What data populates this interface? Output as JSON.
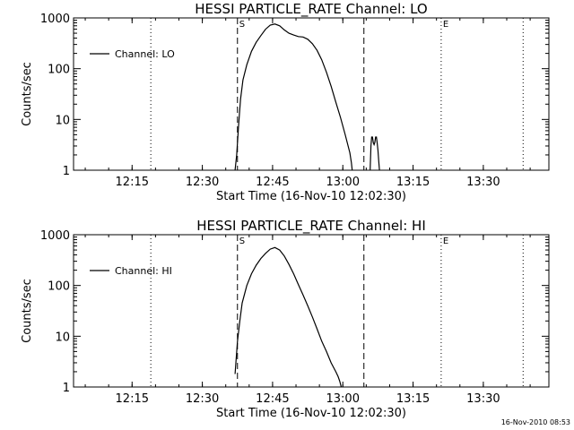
{
  "chart_data": [
    {
      "type": "line",
      "title": "HESSI PARTICLE_RATE Channel: LO",
      "xlabel": "Start Time (16-Nov-10 12:02:30)",
      "ylabel": "Counts/sec",
      "y_scale": "log",
      "ylim": [
        1,
        1000
      ],
      "xlim": [
        "12:02:30",
        "13:44:00"
      ],
      "x_ticks": [
        "12:15",
        "12:30",
        "12:45",
        "13:00",
        "13:15",
        "13:30"
      ],
      "y_ticks": [
        "1",
        "10",
        "100",
        "1000"
      ],
      "grid": false,
      "legend": {
        "position": "top-left",
        "entries": [
          "Channel: LO"
        ]
      },
      "markers": [
        {
          "label": "S",
          "time": "12:37:30",
          "style": "dashed"
        },
        {
          "label": "",
          "time": "13:04:30",
          "style": "dashed"
        },
        {
          "label": "",
          "time": "12:19:00",
          "style": "dotted"
        },
        {
          "label": "",
          "time": "13:21:00",
          "style": "dotted"
        },
        {
          "label": "E",
          "time": "13:21:00",
          "style": "none"
        },
        {
          "label": "",
          "time": "13:38:30",
          "style": "dotted"
        }
      ],
      "series": [
        {
          "name": "Channel: LO",
          "segments": [
            {
              "x": [
                "12:37:00",
                "12:37:20",
                "12:37:45",
                "12:38:10",
                "12:38:40",
                "12:39:30",
                "12:40:30",
                "12:41:30",
                "12:42:30",
                "12:43:30",
                "12:44:30",
                "12:45:30",
                "12:46:30",
                "12:47:30",
                "12:48:30",
                "12:49:30",
                "12:50:30",
                "12:51:30",
                "12:52:30",
                "12:53:30",
                "12:54:30",
                "12:55:30",
                "12:56:30",
                "12:57:30",
                "12:58:30",
                "12:59:30",
                "13:00:30",
                "13:01:30",
                "13:01:50",
                "13:02:00"
              ],
              "y": [
                1,
                2,
                8,
                25,
                60,
                120,
                220,
                330,
                450,
                600,
                720,
                760,
                700,
                580,
                500,
                460,
                430,
                420,
                380,
                310,
                230,
                150,
                85,
                45,
                22,
                11,
                5,
                2.2,
                1.4,
                1
              ]
            },
            {
              "x": [
                "13:05:50",
                "13:06:00",
                "13:06:10",
                "13:06:20",
                "13:06:30",
                "13:06:40",
                "13:06:50",
                "13:07:00",
                "13:07:10",
                "13:07:20",
                "13:07:30",
                "13:07:40",
                "13:07:50"
              ],
              "y": [
                1,
                3,
                4.5,
                4.5,
                3.5,
                3.2,
                3.5,
                4.5,
                4.5,
                3.5,
                2.5,
                1.5,
                1
              ]
            }
          ]
        }
      ]
    },
    {
      "type": "line",
      "title": "HESSI PARTICLE_RATE Channel: HI",
      "xlabel": "Start Time (16-Nov-10 12:02:30)",
      "ylabel": "Counts/sec",
      "y_scale": "log",
      "ylim": [
        1,
        1000
      ],
      "xlim": [
        "12:02:30",
        "13:44:00"
      ],
      "x_ticks": [
        "12:15",
        "12:30",
        "12:45",
        "13:00",
        "13:15",
        "13:30"
      ],
      "y_ticks": [
        "1",
        "10",
        "100",
        "1000"
      ],
      "grid": false,
      "legend": {
        "position": "top-left",
        "entries": [
          "Channel: HI"
        ]
      },
      "markers": [
        {
          "label": "S",
          "time": "12:37:30",
          "style": "dashed"
        },
        {
          "label": "",
          "time": "13:04:30",
          "style": "dashed"
        },
        {
          "label": "",
          "time": "12:19:00",
          "style": "dotted"
        },
        {
          "label": "",
          "time": "13:21:00",
          "style": "dotted"
        },
        {
          "label": "E",
          "time": "13:21:00",
          "style": "none"
        },
        {
          "label": "",
          "time": "13:38:30",
          "style": "dotted"
        }
      ],
      "series": [
        {
          "name": "Channel: HI",
          "segments": [
            {
              "x": [
                "12:37:00",
                "12:37:10",
                "12:37:30",
                "12:38:00",
                "12:38:30",
                "12:39:30",
                "12:40:30",
                "12:41:30",
                "12:42:30",
                "12:43:30",
                "12:44:30",
                "12:45:30",
                "12:46:30",
                "12:47:30",
                "12:48:30",
                "12:49:30",
                "12:50:30",
                "12:51:30",
                "12:52:30",
                "12:53:30",
                "12:54:30",
                "12:55:30",
                "12:56:30",
                "12:57:30",
                "12:58:30",
                "12:59:00",
                "12:59:20",
                "12:59:40"
              ],
              "y": [
                1.8,
                3,
                8,
                20,
                45,
                100,
                170,
                250,
                340,
                430,
                520,
                560,
                500,
                380,
                260,
                170,
                105,
                65,
                40,
                24,
                14,
                8,
                5,
                3,
                2,
                1.6,
                1.3,
                1
              ]
            }
          ]
        }
      ]
    }
  ],
  "footer": {
    "timestamp": "16-Nov-2010 08:53"
  }
}
